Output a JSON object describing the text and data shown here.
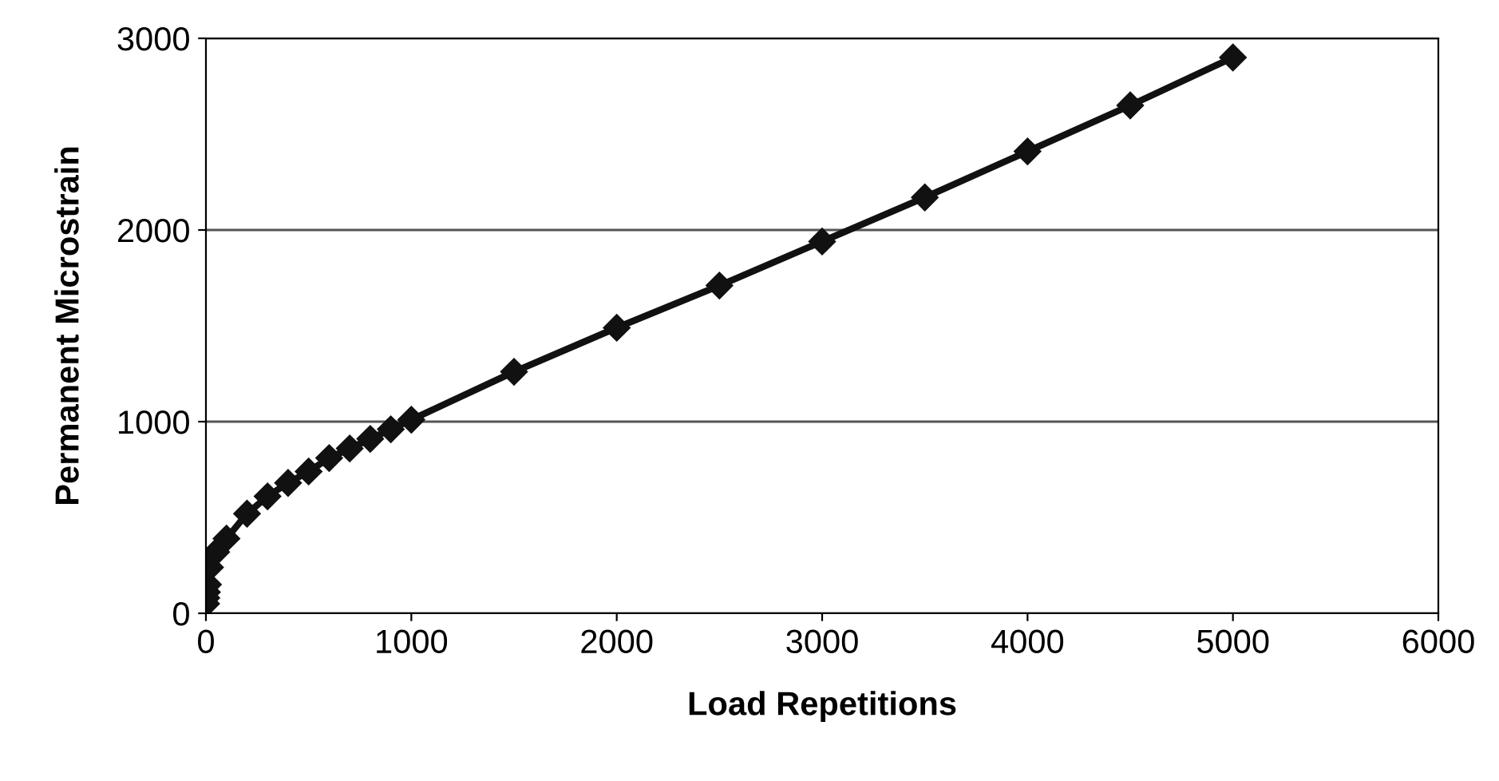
{
  "chart_data": {
    "type": "line",
    "xlabel": "Load Repetitions",
    "ylabel": "Permanent Microstrain",
    "x": [
      1,
      2,
      5,
      10,
      20,
      50,
      100,
      200,
      300,
      400,
      500,
      600,
      700,
      800,
      900,
      1000,
      1500,
      2000,
      2500,
      3000,
      3500,
      4000,
      4500,
      5000
    ],
    "series": [
      {
        "color": "#111111",
        "values": [
          50,
          80,
          110,
          150,
          240,
          320,
          390,
          520,
          610,
          680,
          740,
          810,
          860,
          910,
          960,
          1010,
          1260,
          1490,
          1710,
          1940,
          2170,
          2410,
          2650,
          2900
        ]
      }
    ],
    "xlim": [
      0,
      6000
    ],
    "xticks": [
      0,
      1000,
      2000,
      3000,
      4000,
      5000,
      6000
    ],
    "ylim": [
      0,
      3000
    ],
    "yticks": [
      0,
      1000,
      2000,
      3000
    ],
    "grid": "y",
    "legend": false,
    "marker": "diamond",
    "line_style": "solid"
  }
}
